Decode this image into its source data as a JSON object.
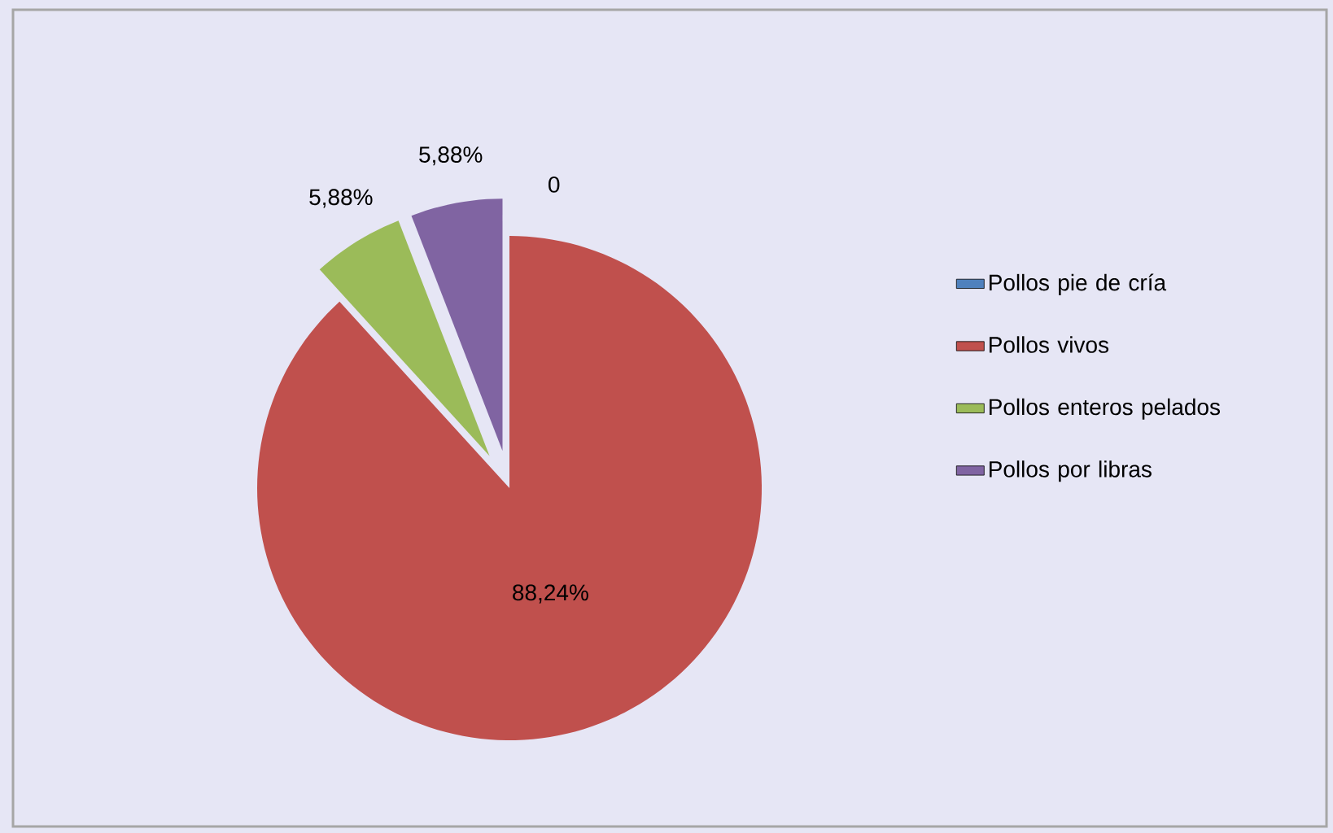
{
  "chart_data": {
    "type": "pie",
    "categories": [
      "Pollos pie de cría",
      "Pollos vivos",
      "Pollos enteros pelados",
      "Pollos por libras"
    ],
    "values": [
      0,
      88.24,
      5.88,
      5.88
    ],
    "colors": [
      "#4f81bd",
      "#c0504d",
      "#9bbb59",
      "#8064a2"
    ],
    "value_labels": [
      "0",
      "88,24%",
      "5,88%",
      "5,88%"
    ],
    "legend": "right"
  }
}
